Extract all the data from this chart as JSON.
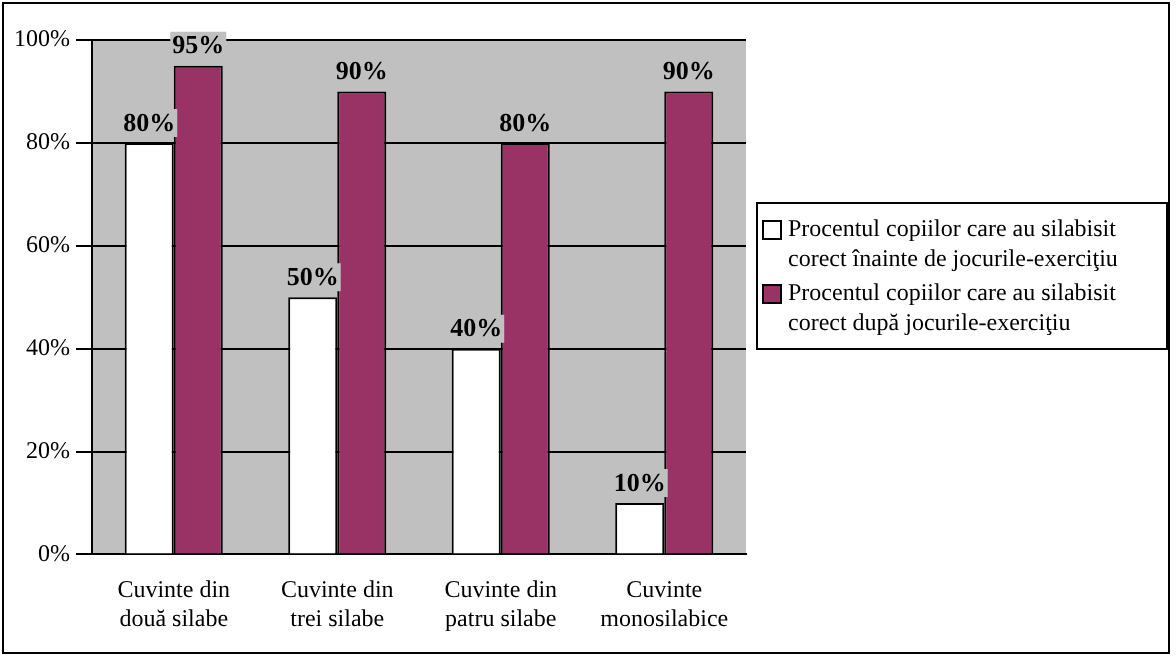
{
  "chart_data": {
    "type": "bar",
    "categories": [
      "Cuvinte din două silabe",
      "Cuvinte din trei silabe",
      "Cuvinte din patru silabe",
      "Cuvinte monosilabice"
    ],
    "series": [
      {
        "name": "Procentul copiilor care au silabisit corect înainte de jocurile-exerciţiu",
        "color": "#ffffff",
        "values": [
          80,
          50,
          40,
          10
        ],
        "value_labels": [
          "80%",
          "50%",
          "40%",
          "10%"
        ]
      },
      {
        "name": "Procentul copiilor care au silabisit corect după jocurile-exerciţiu",
        "color": "#993366",
        "values": [
          95,
          90,
          80,
          90
        ],
        "value_labels": [
          "95%",
          "90%",
          "80%",
          "90%"
        ]
      }
    ],
    "ylim": [
      0,
      100
    ],
    "yticks": [
      {
        "value": 0,
        "label": "0%"
      },
      {
        "value": 20,
        "label": "20%"
      },
      {
        "value": 40,
        "label": "40%"
      },
      {
        "value": 60,
        "label": "60%"
      },
      {
        "value": 80,
        "label": "80%"
      },
      {
        "value": 100,
        "label": "100%"
      }
    ],
    "grid": "y",
    "legend": "right"
  }
}
